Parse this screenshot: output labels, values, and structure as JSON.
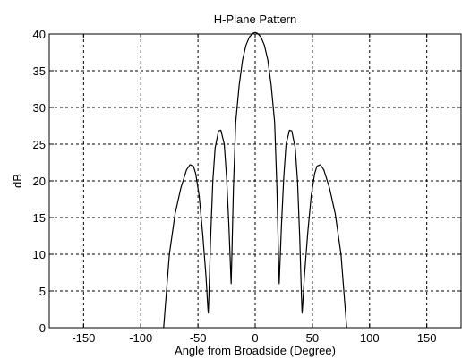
{
  "chart_data": {
    "type": "line",
    "title": "H-Plane Pattern",
    "xlabel": "Angle from Broadside (Degree)",
    "ylabel": "dB",
    "xlim": [
      -180,
      180
    ],
    "ylim": [
      0,
      40
    ],
    "xticks": [
      -150,
      -100,
      -50,
      0,
      50,
      100,
      150
    ],
    "yticks": [
      0,
      5,
      10,
      15,
      20,
      25,
      30,
      35,
      40
    ],
    "grid": true,
    "grid_style": "dashed",
    "line_color": "#000000",
    "series": [
      {
        "x": [
          -80,
          -75,
          -70,
          -65,
          -60,
          -57,
          -54,
          -52,
          -49,
          -46,
          -43,
          -41.5,
          -41,
          -40.5,
          -39,
          -37,
          -35,
          -32,
          -30,
          -27,
          -25,
          -23,
          -21.5,
          -21,
          -20.5,
          -19,
          -17,
          -14,
          -11,
          -8,
          -5,
          -2,
          0,
          2,
          5,
          8,
          11,
          14,
          17,
          19,
          20.5,
          21,
          21.5,
          23,
          25,
          27,
          30,
          32,
          35,
          37,
          39,
          40.5,
          41,
          41.5,
          43,
          46,
          49,
          52,
          54,
          57,
          60,
          65,
          70,
          75,
          80
        ],
        "y": [
          0,
          10,
          15.5,
          19,
          21.5,
          22.2,
          22,
          21,
          18,
          13,
          7,
          3,
          2,
          4,
          12,
          20,
          24.5,
          26.8,
          26.9,
          25,
          20.5,
          14,
          8,
          6,
          9,
          19,
          28,
          33,
          36.5,
          38.5,
          39.6,
          40.1,
          40.2,
          40.1,
          39.6,
          38.5,
          36.5,
          33,
          28,
          19,
          9,
          6,
          8,
          14,
          20.5,
          25,
          26.9,
          26.8,
          24.5,
          20,
          12,
          4,
          2,
          3,
          7,
          13,
          18,
          21,
          22,
          22.2,
          21.5,
          19,
          15.5,
          10,
          0
        ]
      }
    ]
  }
}
